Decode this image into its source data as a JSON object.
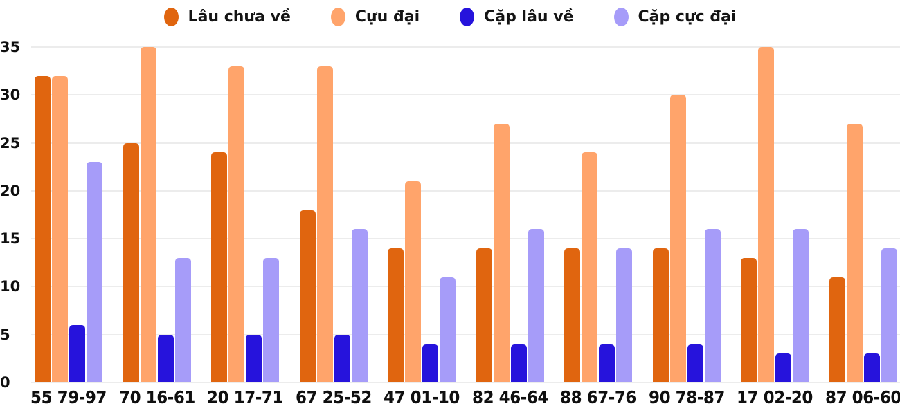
{
  "legend": {
    "items": [
      {
        "label": "Lâu chưa về",
        "color": "#e0650f"
      },
      {
        "label": "Cựu đại",
        "color": "#ffa46b"
      },
      {
        "label": "Cặp lâu về",
        "color": "#2613dc"
      },
      {
        "label": "Cặp cực đại",
        "color": "#a69cf9"
      }
    ]
  },
  "chart_data": {
    "type": "bar",
    "title": "",
    "xlabel": "",
    "ylabel": "",
    "categories": [
      "55 79-97",
      "70 16-61",
      "20 17-71",
      "67 25-52",
      "47 01-10",
      "82 46-64",
      "88 67-76",
      "90 78-87",
      "17 02-20",
      "87 06-60"
    ],
    "series": [
      {
        "name": "Lâu chưa về",
        "color": "#e0650f",
        "values": [
          32,
          25,
          24,
          18,
          14,
          14,
          14,
          14,
          13,
          11
        ]
      },
      {
        "name": "Cựu đại",
        "color": "#ffa46b",
        "values": [
          32,
          35,
          33,
          33,
          21,
          27,
          24,
          30,
          35,
          27
        ]
      },
      {
        "name": "Cặp lâu về",
        "color": "#2613dc",
        "values": [
          6,
          5,
          5,
          5,
          4,
          4,
          4,
          4,
          3,
          3
        ]
      },
      {
        "name": "Cặp cực đại",
        "color": "#a69cf9",
        "values": [
          23,
          13,
          13,
          16,
          11,
          16,
          14,
          16,
          16,
          14
        ]
      }
    ],
    "yticks": [
      0,
      5,
      10,
      15,
      20,
      25,
      30,
      35
    ],
    "ylim": [
      0,
      35
    ],
    "grid": true,
    "gridline_color": "#ececec",
    "legend_position": "top",
    "background_color": "#ffffff"
  }
}
